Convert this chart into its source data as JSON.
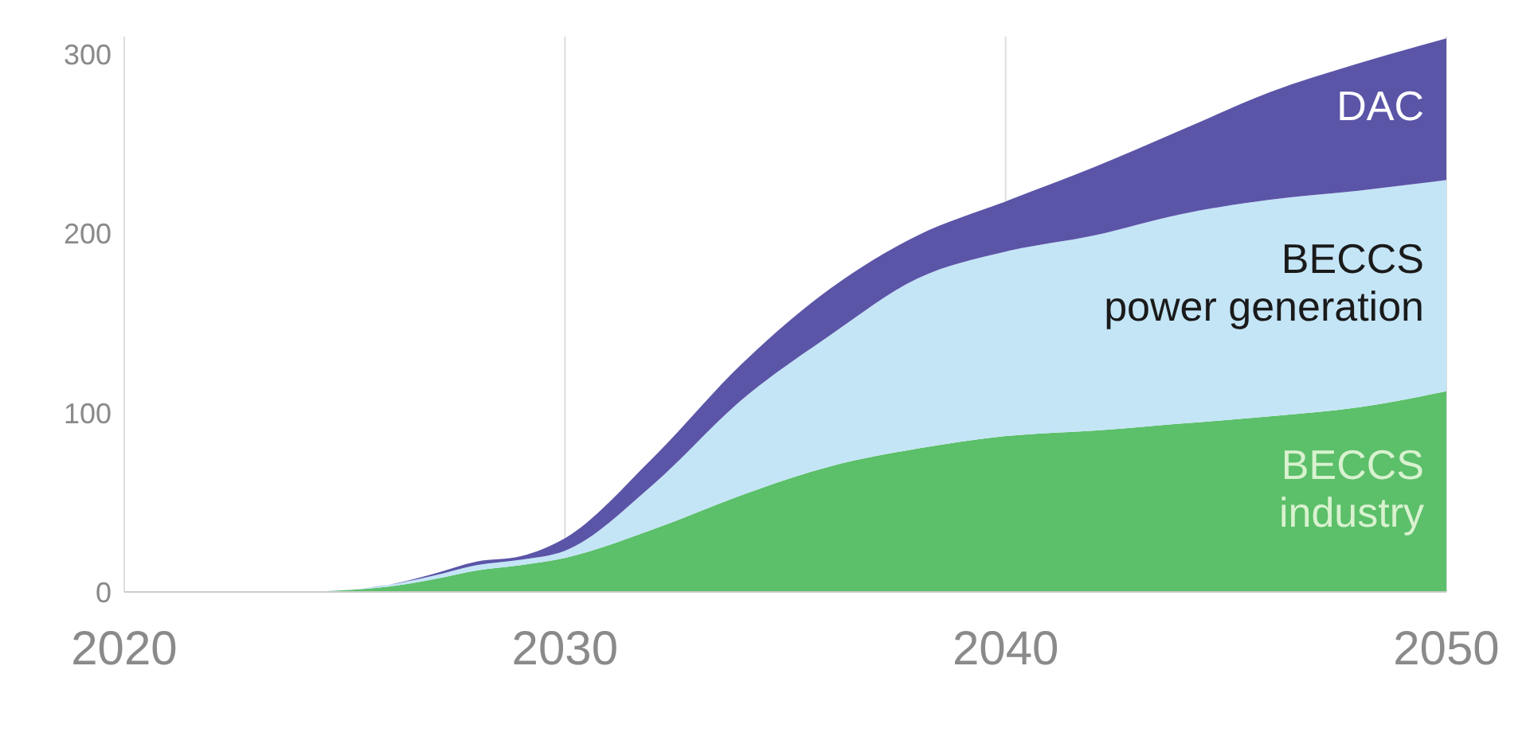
{
  "chart_data": {
    "type": "area",
    "stacked": true,
    "x": [
      2020,
      2022,
      2024,
      2025,
      2026,
      2027,
      2028,
      2029,
      2030,
      2032,
      2034,
      2036,
      2038,
      2040,
      2042,
      2044,
      2046,
      2048,
      2050
    ],
    "series": [
      {
        "name": "BECCS industry",
        "color": "#5cbf6a",
        "values": [
          0,
          0,
          0,
          1,
          3,
          7,
          12,
          15,
          19,
          35,
          54,
          70,
          80,
          87,
          90,
          94,
          98,
          103,
          112
        ]
      },
      {
        "name": "BECCS power generation",
        "color": "#c4e5f6",
        "values": [
          0,
          0,
          0,
          0,
          1,
          2,
          3,
          3,
          4,
          25,
          53,
          73,
          95,
          103,
          109,
          117,
          121,
          121,
          118
        ]
      },
      {
        "name": "DAC",
        "color": "#5b55a8",
        "values": [
          0,
          0,
          0,
          0,
          0,
          1,
          2,
          2,
          7,
          15,
          20,
          26,
          24,
          28,
          38,
          47,
          60,
          71,
          79
        ]
      }
    ],
    "xlim": [
      2020,
      2050
    ],
    "xticks": [
      2020,
      2030,
      2040,
      2050
    ],
    "ylim": [
      0,
      310
    ],
    "yticks": [
      0,
      100,
      200,
      300
    ],
    "grid": "x"
  }
}
